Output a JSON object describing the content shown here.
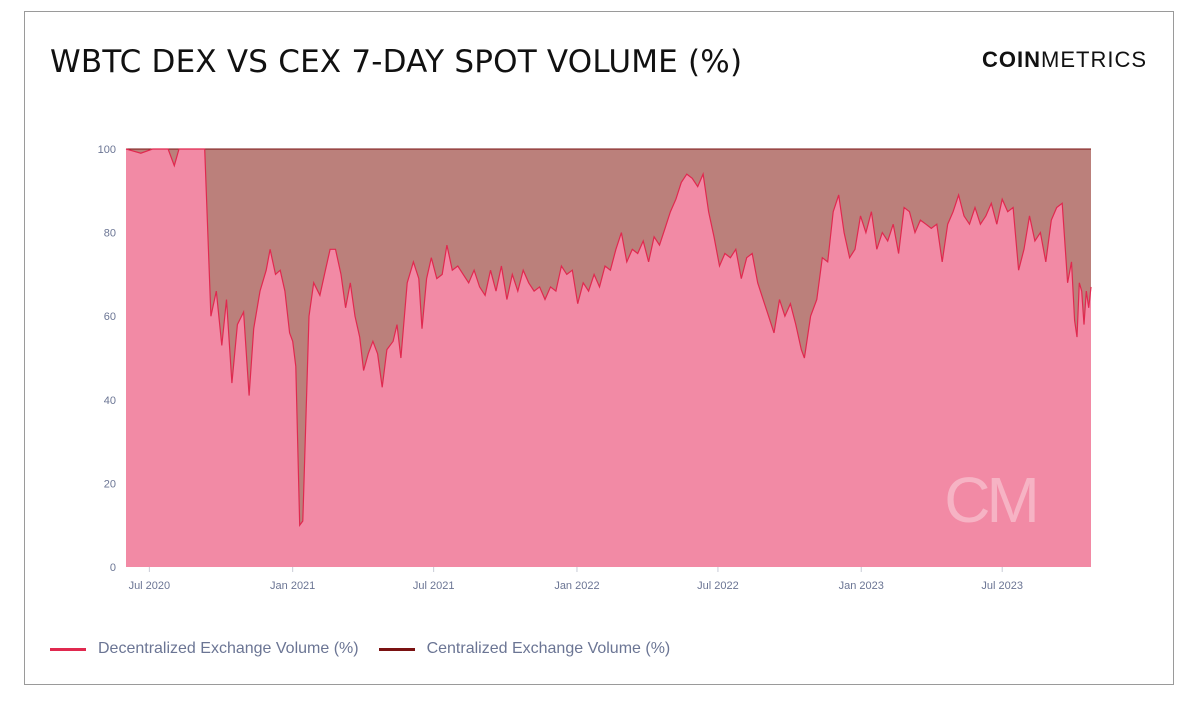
{
  "title": "WBTC DEX VS CEX 7-DAY SPOT VOLUME (%)",
  "logo": {
    "bold": "COIN",
    "light": "METRICS",
    "watermark": "CM"
  },
  "colors": {
    "dex_fill": "#f28aa5",
    "dex_line": "#e0294f",
    "cex_fill": "#bb807b",
    "cex_line": "#7a1212",
    "axis_text": "#6b7594"
  },
  "legend": [
    {
      "label": "Decentralized Exchange Volume (%)",
      "color": "#e0294f"
    },
    {
      "label": "Centralized Exchange Volume (%)",
      "color": "#7a1212"
    }
  ],
  "chart_data": {
    "type": "area",
    "stacked": true,
    "x_unit": "date",
    "ylim": [
      0,
      100
    ],
    "yticks": [
      0,
      20,
      40,
      60,
      80,
      100
    ],
    "xticks": [
      {
        "date": "2020-07-01",
        "label": "Jul 2020"
      },
      {
        "date": "2021-01-01",
        "label": "Jan 2021"
      },
      {
        "date": "2021-07-01",
        "label": "Jul 2021"
      },
      {
        "date": "2022-01-01",
        "label": "Jan 2022"
      },
      {
        "date": "2022-07-01",
        "label": "Jul 2022"
      },
      {
        "date": "2023-01-01",
        "label": "Jan 2023"
      },
      {
        "date": "2023-07-01",
        "label": "Jul 2023"
      }
    ],
    "grid": false,
    "legend_position": "bottom-left",
    "series": [
      {
        "name": "Decentralized Exchange Volume (%)",
        "points": [
          [
            "2020-06-01",
            100
          ],
          [
            "2020-06-20",
            99
          ],
          [
            "2020-07-05",
            100
          ],
          [
            "2020-07-25",
            100
          ],
          [
            "2020-08-02",
            96
          ],
          [
            "2020-08-08",
            100
          ],
          [
            "2020-08-30",
            100
          ],
          [
            "2020-09-10",
            100
          ],
          [
            "2020-09-18",
            60
          ],
          [
            "2020-09-25",
            66
          ],
          [
            "2020-10-02",
            53
          ],
          [
            "2020-10-08",
            64
          ],
          [
            "2020-10-15",
            44
          ],
          [
            "2020-10-22",
            58
          ],
          [
            "2020-10-30",
            61
          ],
          [
            "2020-11-06",
            41
          ],
          [
            "2020-11-12",
            57
          ],
          [
            "2020-11-20",
            66
          ],
          [
            "2020-11-28",
            71
          ],
          [
            "2020-12-03",
            76
          ],
          [
            "2020-12-10",
            70
          ],
          [
            "2020-12-16",
            71
          ],
          [
            "2020-12-22",
            66
          ],
          [
            "2020-12-28",
            56
          ],
          [
            "2021-01-01",
            54
          ],
          [
            "2021-01-05",
            48
          ],
          [
            "2021-01-10",
            10
          ],
          [
            "2021-01-14",
            11
          ],
          [
            "2021-01-22",
            60
          ],
          [
            "2021-01-28",
            68
          ],
          [
            "2021-02-05",
            65
          ],
          [
            "2021-02-12",
            71
          ],
          [
            "2021-02-18",
            76
          ],
          [
            "2021-02-25",
            76
          ],
          [
            "2021-03-04",
            70
          ],
          [
            "2021-03-10",
            62
          ],
          [
            "2021-03-16",
            68
          ],
          [
            "2021-03-22",
            60
          ],
          [
            "2021-03-28",
            55
          ],
          [
            "2021-04-02",
            47
          ],
          [
            "2021-04-08",
            51
          ],
          [
            "2021-04-14",
            54
          ],
          [
            "2021-04-20",
            51
          ],
          [
            "2021-04-26",
            43
          ],
          [
            "2021-05-02",
            52
          ],
          [
            "2021-05-10",
            54
          ],
          [
            "2021-05-15",
            58
          ],
          [
            "2021-05-20",
            50
          ],
          [
            "2021-05-28",
            68
          ],
          [
            "2021-06-05",
            73
          ],
          [
            "2021-06-12",
            69
          ],
          [
            "2021-06-16",
            57
          ],
          [
            "2021-06-22",
            69
          ],
          [
            "2021-06-28",
            74
          ],
          [
            "2021-07-05",
            69
          ],
          [
            "2021-07-12",
            70
          ],
          [
            "2021-07-18",
            77
          ],
          [
            "2021-07-25",
            71
          ],
          [
            "2021-08-01",
            72
          ],
          [
            "2021-08-08",
            70
          ],
          [
            "2021-08-15",
            68
          ],
          [
            "2021-08-22",
            71
          ],
          [
            "2021-08-29",
            67
          ],
          [
            "2021-09-05",
            65
          ],
          [
            "2021-09-12",
            71
          ],
          [
            "2021-09-19",
            66
          ],
          [
            "2021-09-26",
            72
          ],
          [
            "2021-10-03",
            64
          ],
          [
            "2021-10-10",
            70
          ],
          [
            "2021-10-17",
            66
          ],
          [
            "2021-10-24",
            71
          ],
          [
            "2021-10-31",
            68
          ],
          [
            "2021-11-07",
            66
          ],
          [
            "2021-11-14",
            67
          ],
          [
            "2021-11-21",
            64
          ],
          [
            "2021-11-28",
            67
          ],
          [
            "2021-12-05",
            66
          ],
          [
            "2021-12-12",
            72
          ],
          [
            "2021-12-19",
            70
          ],
          [
            "2021-12-26",
            71
          ],
          [
            "2022-01-02",
            63
          ],
          [
            "2022-01-09",
            68
          ],
          [
            "2022-01-16",
            66
          ],
          [
            "2022-01-23",
            70
          ],
          [
            "2022-01-30",
            67
          ],
          [
            "2022-02-06",
            72
          ],
          [
            "2022-02-13",
            71
          ],
          [
            "2022-02-20",
            76
          ],
          [
            "2022-02-27",
            80
          ],
          [
            "2022-03-06",
            73
          ],
          [
            "2022-03-13",
            76
          ],
          [
            "2022-03-20",
            75
          ],
          [
            "2022-03-27",
            78
          ],
          [
            "2022-04-03",
            73
          ],
          [
            "2022-04-10",
            79
          ],
          [
            "2022-04-17",
            77
          ],
          [
            "2022-04-24",
            81
          ],
          [
            "2022-05-01",
            85
          ],
          [
            "2022-05-08",
            88
          ],
          [
            "2022-05-15",
            92
          ],
          [
            "2022-05-22",
            94
          ],
          [
            "2022-05-29",
            93
          ],
          [
            "2022-06-05",
            91
          ],
          [
            "2022-06-12",
            94
          ],
          [
            "2022-06-19",
            85
          ],
          [
            "2022-06-26",
            79
          ],
          [
            "2022-07-03",
            72
          ],
          [
            "2022-07-10",
            75
          ],
          [
            "2022-07-17",
            74
          ],
          [
            "2022-07-24",
            76
          ],
          [
            "2022-07-31",
            69
          ],
          [
            "2022-08-07",
            74
          ],
          [
            "2022-08-14",
            75
          ],
          [
            "2022-08-21",
            68
          ],
          [
            "2022-08-28",
            64
          ],
          [
            "2022-09-04",
            60
          ],
          [
            "2022-09-11",
            56
          ],
          [
            "2022-09-18",
            64
          ],
          [
            "2022-09-25",
            60
          ],
          [
            "2022-10-02",
            63
          ],
          [
            "2022-10-09",
            58
          ],
          [
            "2022-10-16",
            52
          ],
          [
            "2022-10-20",
            50
          ],
          [
            "2022-10-28",
            60
          ],
          [
            "2022-11-05",
            64
          ],
          [
            "2022-11-12",
            74
          ],
          [
            "2022-11-19",
            73
          ],
          [
            "2022-11-26",
            85
          ],
          [
            "2022-12-03",
            89
          ],
          [
            "2022-12-10",
            80
          ],
          [
            "2022-12-17",
            74
          ],
          [
            "2022-12-24",
            76
          ],
          [
            "2022-12-31",
            84
          ],
          [
            "2023-01-07",
            80
          ],
          [
            "2023-01-14",
            85
          ],
          [
            "2023-01-21",
            76
          ],
          [
            "2023-01-28",
            80
          ],
          [
            "2023-02-04",
            78
          ],
          [
            "2023-02-11",
            82
          ],
          [
            "2023-02-18",
            75
          ],
          [
            "2023-02-25",
            86
          ],
          [
            "2023-03-04",
            85
          ],
          [
            "2023-03-11",
            80
          ],
          [
            "2023-03-18",
            83
          ],
          [
            "2023-03-25",
            82
          ],
          [
            "2023-04-01",
            81
          ],
          [
            "2023-04-08",
            82
          ],
          [
            "2023-04-15",
            73
          ],
          [
            "2023-04-22",
            82
          ],
          [
            "2023-04-29",
            85
          ],
          [
            "2023-05-06",
            89
          ],
          [
            "2023-05-13",
            84
          ],
          [
            "2023-05-20",
            82
          ],
          [
            "2023-05-27",
            86
          ],
          [
            "2023-06-03",
            82
          ],
          [
            "2023-06-10",
            84
          ],
          [
            "2023-06-17",
            87
          ],
          [
            "2023-06-24",
            82
          ],
          [
            "2023-07-01",
            88
          ],
          [
            "2023-07-08",
            85
          ],
          [
            "2023-07-15",
            86
          ],
          [
            "2023-07-22",
            71
          ],
          [
            "2023-07-29",
            76
          ],
          [
            "2023-08-05",
            84
          ],
          [
            "2023-08-12",
            78
          ],
          [
            "2023-08-19",
            80
          ],
          [
            "2023-08-26",
            73
          ],
          [
            "2023-09-02",
            83
          ],
          [
            "2023-09-09",
            86
          ],
          [
            "2023-09-16",
            87
          ],
          [
            "2023-09-23",
            68
          ],
          [
            "2023-09-28",
            73
          ],
          [
            "2023-10-02",
            59
          ],
          [
            "2023-10-05",
            55
          ],
          [
            "2023-10-08",
            68
          ],
          [
            "2023-10-11",
            66
          ],
          [
            "2023-10-14",
            58
          ],
          [
            "2023-10-17",
            66
          ],
          [
            "2023-10-20",
            62
          ],
          [
            "2023-10-23",
            67
          ]
        ]
      },
      {
        "name": "Centralized Exchange Volume (%)",
        "complement_of": "Decentralized Exchange Volume (%)"
      }
    ]
  }
}
